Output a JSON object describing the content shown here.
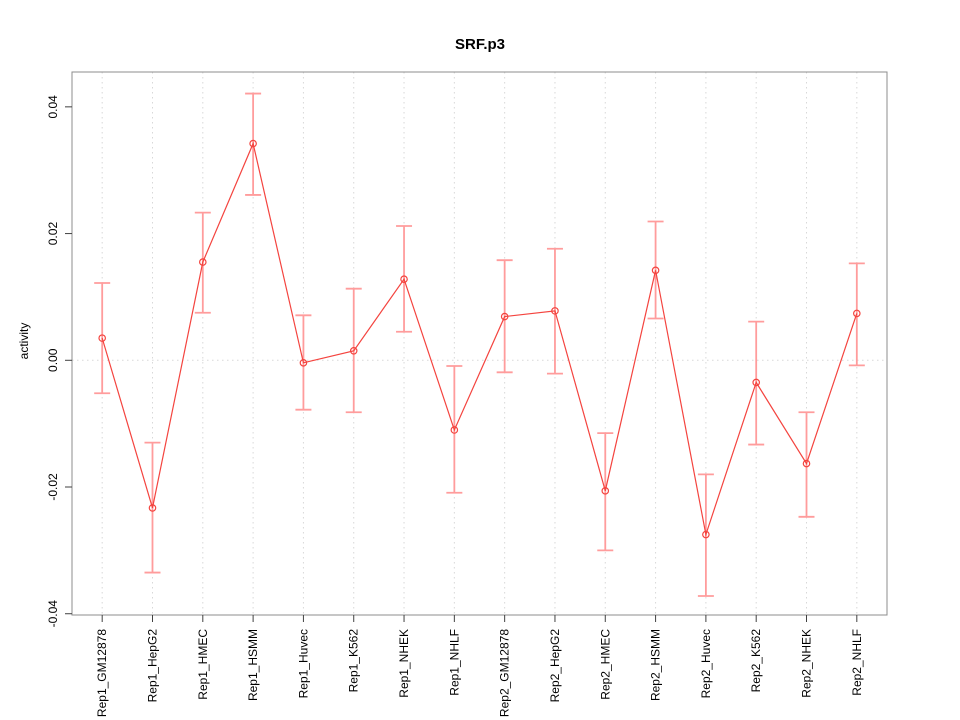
{
  "page": {
    "background": "#ffffff"
  },
  "chart_data": {
    "type": "line",
    "title": "SRF.p3",
    "xlabel": "",
    "ylabel": "activity",
    "legend": "none",
    "marker": "open-circle",
    "categories": [
      "Rep1_GM12878",
      "Rep1_HepG2",
      "Rep1_HMEC",
      "Rep1_HSMM",
      "Rep1_Huvec",
      "Rep1_K562",
      "Rep1_NHEK",
      "Rep1_NHLF",
      "Rep2_GM12878",
      "Rep2_HepG2",
      "Rep2_HMEC",
      "Rep2_HSMM",
      "Rep2_Huvec",
      "Rep2_K562",
      "Rep2_NHEK",
      "Rep2_NHLF"
    ],
    "series": [
      {
        "name": "activity",
        "values": [
          0.0035,
          -0.0233,
          0.0155,
          0.0342,
          -0.0004,
          0.0015,
          0.0128,
          -0.011,
          0.0069,
          0.0078,
          -0.0206,
          0.0142,
          -0.0275,
          -0.0035,
          -0.0163,
          0.0074
        ],
        "ci_lower": [
          -0.0052,
          -0.0335,
          0.0075,
          0.0261,
          -0.0078,
          -0.0082,
          0.0045,
          -0.0209,
          -0.0019,
          -0.0021,
          -0.03,
          0.0066,
          -0.0372,
          -0.0133,
          -0.0247,
          -0.0008
        ],
        "ci_upper": [
          0.0122,
          -0.013,
          0.0233,
          0.0421,
          0.0071,
          0.0113,
          0.0212,
          -0.0009,
          0.0158,
          0.0176,
          -0.0115,
          0.0219,
          -0.018,
          0.0061,
          -0.0082,
          0.0153
        ]
      }
    ],
    "ytick_values": [
      -0.04,
      -0.02,
      0,
      0.02,
      0.04
    ],
    "ytick_labels": [
      "-0.04",
      "-0.02",
      "0.00",
      "0.02",
      "0.04"
    ],
    "ylim": [
      -0.0402,
      0.0455
    ],
    "grid": {
      "vertical_dotted_per_category": true,
      "horizontal_zero_line": true,
      "other_horizontal_lines": false
    },
    "colors": {
      "line": "#f4443f",
      "marker": "#f4443f",
      "error_bar": "#ff9c9c",
      "grid": "#d8d8d8",
      "box": "#8c8c8c",
      "tick": "#404040",
      "text": "#000000",
      "background": "#ffffff"
    }
  }
}
